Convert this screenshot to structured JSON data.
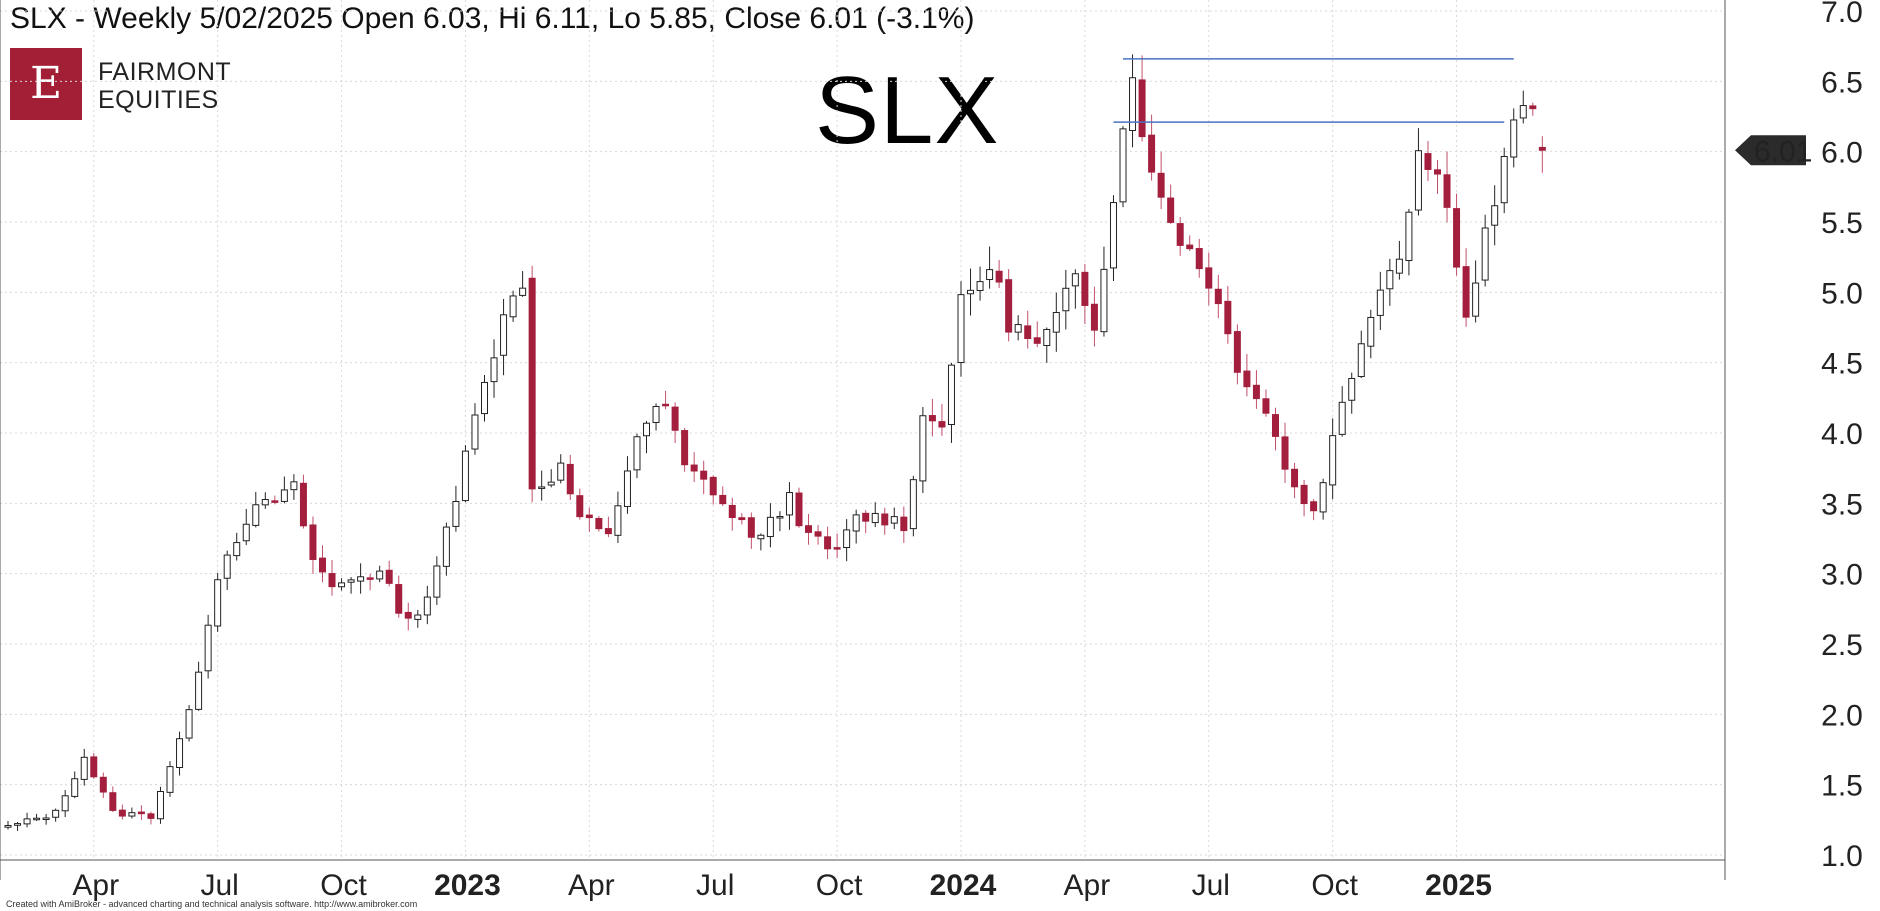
{
  "header": {
    "title": "SLX - Weekly 5/02/2025 Open 6.03, Hi 6.11, Lo 5.85, Close 6.01 (-3.1%)"
  },
  "logo": {
    "mark": "E",
    "line1": "FAIRMONT",
    "line2": "EQUITIES"
  },
  "ticker_label": "SLX",
  "footer": {
    "text": "Created with AmiBroker - advanced charting and technical analysis software. http://www.amibroker.com"
  },
  "price_badge": "6.01",
  "colors": {
    "up_fill": "#ffffff",
    "down_fill": "#a31f3d",
    "wick_down": "#c0506a",
    "outline": "#222222",
    "line": "#4a72c4",
    "badge": "#2b2b2b"
  },
  "chart_data": {
    "type": "candlestick",
    "ylim": [
      0.9,
      7.0
    ],
    "yticks": [
      1.0,
      1.5,
      2.0,
      2.5,
      3.0,
      3.5,
      4.0,
      4.5,
      5.0,
      5.5,
      6.0,
      6.5,
      7.0
    ],
    "ytick_labels": [
      "1.0",
      "1.5",
      "2.0",
      "2.5",
      "3.0",
      "3.5",
      "4.0",
      "4.5",
      "5.0",
      "5.5",
      "6.0",
      "6.5",
      "7.0"
    ],
    "xticks": [
      {
        "label": "Apr",
        "week": 9,
        "bold": false
      },
      {
        "label": "Jul",
        "week": 22,
        "bold": false
      },
      {
        "label": "Oct",
        "week": 35,
        "bold": false
      },
      {
        "label": "2023",
        "week": 48,
        "bold": true
      },
      {
        "label": "Apr",
        "week": 61,
        "bold": false
      },
      {
        "label": "Jul",
        "week": 74,
        "bold": false
      },
      {
        "label": "Oct",
        "week": 87,
        "bold": false
      },
      {
        "label": "2024",
        "week": 100,
        "bold": true
      },
      {
        "label": "Apr",
        "week": 113,
        "bold": false
      },
      {
        "label": "Jul",
        "week": 126,
        "bold": false
      },
      {
        "label": "Oct",
        "week": 139,
        "bold": false
      },
      {
        "label": "2025",
        "week": 152,
        "bold": true
      }
    ],
    "weeks_visible": 169,
    "horizontal_lines": [
      {
        "y": 6.66,
        "from_week": 117,
        "to_week": 158
      },
      {
        "y": 6.21,
        "from_week": 116,
        "to_week": 157
      }
    ],
    "last_close": 6.01,
    "anchors": [
      {
        "w": 0,
        "v": 1.2
      },
      {
        "w": 5,
        "v": 1.3
      },
      {
        "w": 8,
        "v": 1.7
      },
      {
        "w": 11,
        "v": 1.3
      },
      {
        "w": 15,
        "v": 1.28
      },
      {
        "w": 19,
        "v": 2.0
      },
      {
        "w": 22,
        "v": 3.0
      },
      {
        "w": 25,
        "v": 3.4
      },
      {
        "w": 30,
        "v": 3.6
      },
      {
        "w": 32,
        "v": 3.1
      },
      {
        "w": 34,
        "v": 2.9
      },
      {
        "w": 37,
        "v": 3.0
      },
      {
        "w": 39,
        "v": 3.0
      },
      {
        "w": 42,
        "v": 2.65
      },
      {
        "w": 44,
        "v": 2.85
      },
      {
        "w": 47,
        "v": 3.5
      },
      {
        "w": 49,
        "v": 4.2
      },
      {
        "w": 52,
        "v": 4.8
      },
      {
        "w": 54,
        "v": 5.1
      },
      {
        "w": 55,
        "v": 3.6
      },
      {
        "w": 58,
        "v": 3.75
      },
      {
        "w": 60,
        "v": 3.4
      },
      {
        "w": 63,
        "v": 3.25
      },
      {
        "w": 66,
        "v": 4.0
      },
      {
        "w": 69,
        "v": 4.2
      },
      {
        "w": 71,
        "v": 3.75
      },
      {
        "w": 74,
        "v": 3.6
      },
      {
        "w": 76,
        "v": 3.4
      },
      {
        "w": 79,
        "v": 3.25
      },
      {
        "w": 82,
        "v": 3.55
      },
      {
        "w": 84,
        "v": 3.25
      },
      {
        "w": 87,
        "v": 3.15
      },
      {
        "w": 89,
        "v": 3.4
      },
      {
        "w": 92,
        "v": 3.4
      },
      {
        "w": 94,
        "v": 3.35
      },
      {
        "w": 96,
        "v": 4.1
      },
      {
        "w": 98,
        "v": 4.1
      },
      {
        "w": 100,
        "v": 4.9
      },
      {
        "w": 103,
        "v": 5.2
      },
      {
        "w": 105,
        "v": 4.8
      },
      {
        "w": 108,
        "v": 4.6
      },
      {
        "w": 110,
        "v": 4.8
      },
      {
        "w": 112,
        "v": 5.1
      },
      {
        "w": 114,
        "v": 4.8
      },
      {
        "w": 116,
        "v": 5.7
      },
      {
        "w": 118,
        "v": 6.6
      },
      {
        "w": 120,
        "v": 5.8
      },
      {
        "w": 123,
        "v": 5.4
      },
      {
        "w": 126,
        "v": 5.1
      },
      {
        "w": 129,
        "v": 4.5
      },
      {
        "w": 132,
        "v": 4.15
      },
      {
        "w": 135,
        "v": 3.6
      },
      {
        "w": 137,
        "v": 3.45
      },
      {
        "w": 140,
        "v": 4.2
      },
      {
        "w": 143,
        "v": 4.9
      },
      {
        "w": 146,
        "v": 5.3
      },
      {
        "w": 148,
        "v": 6.0
      },
      {
        "w": 151,
        "v": 5.7
      },
      {
        "w": 153,
        "v": 4.8
      },
      {
        "w": 155,
        "v": 5.4
      },
      {
        "w": 157,
        "v": 5.9
      },
      {
        "w": 159,
        "v": 6.4
      },
      {
        "w": 161,
        "v": 6.01
      }
    ]
  }
}
